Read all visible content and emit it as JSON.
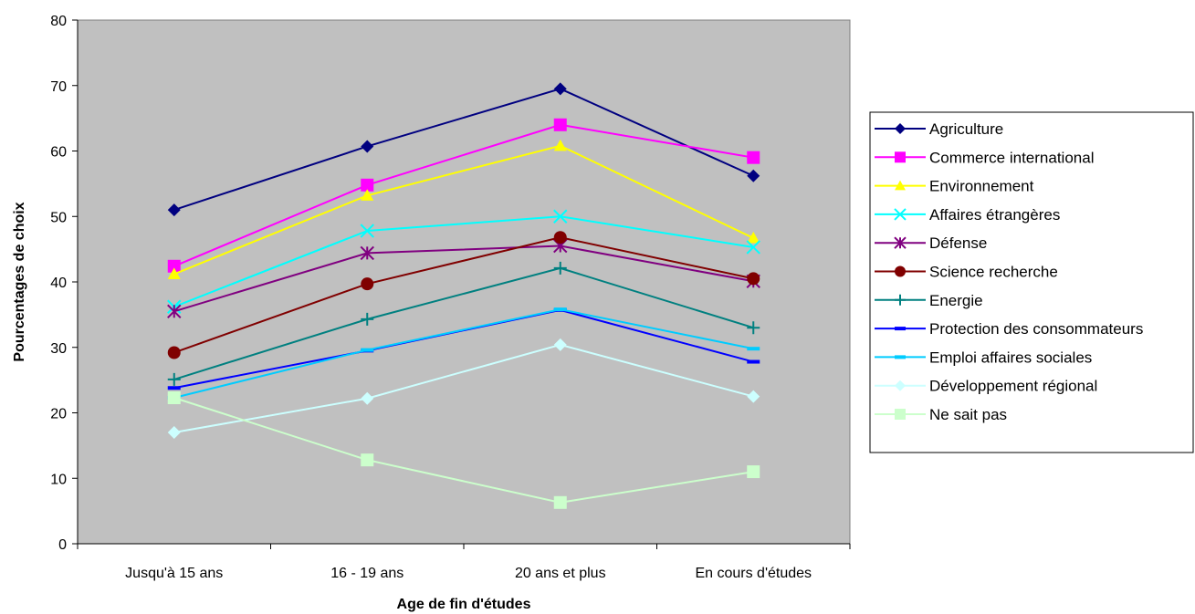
{
  "chart_data": {
    "type": "line",
    "title": "",
    "xlabel": "Age de fin d'études",
    "ylabel": "Pourcentages de choix",
    "ylim": [
      0,
      80
    ],
    "yticks": [
      0,
      10,
      20,
      30,
      40,
      50,
      60,
      70,
      80
    ],
    "grid": false,
    "plot_background": "#c0c0c0",
    "legend_position": "right",
    "categories": [
      "Jusqu'à 15 ans",
      "16 - 19 ans",
      "20 ans et plus",
      "En cours d'études"
    ],
    "series": [
      {
        "name": "Agriculture",
        "color": "#000080",
        "marker": "diamond",
        "values": [
          51,
          60.7,
          69.5,
          56.2
        ]
      },
      {
        "name": "Commerce international",
        "color": "#ff00ff",
        "marker": "square",
        "values": [
          42.4,
          54.8,
          64,
          59
        ]
      },
      {
        "name": "Environnement",
        "color": "#ffff00",
        "marker": "triangle",
        "values": [
          41.2,
          53.2,
          60.8,
          46.7
        ]
      },
      {
        "name": "Affaires étrangères",
        "color": "#00ffff",
        "marker": "x",
        "values": [
          36.2,
          47.8,
          50,
          45.3
        ]
      },
      {
        "name": "Défense",
        "color": "#800080",
        "marker": "star",
        "values": [
          35.5,
          44.4,
          45.5,
          40.1
        ]
      },
      {
        "name": "Science recherche",
        "color": "#800000",
        "marker": "circle",
        "values": [
          29.2,
          39.7,
          46.8,
          40.5
        ]
      },
      {
        "name": "Energie",
        "color": "#008080",
        "marker": "plus",
        "values": [
          25.1,
          34.3,
          42.1,
          33
        ]
      },
      {
        "name": "Protection des consommateurs",
        "color": "#0000ff",
        "marker": "dash",
        "values": [
          23.8,
          29.5,
          35.7,
          27.8
        ]
      },
      {
        "name": "Emploi affaires sociales",
        "color": "#00ccff",
        "marker": "dash",
        "values": [
          22.3,
          29.6,
          35.8,
          29.8
        ]
      },
      {
        "name": "Développement régional",
        "color": "#ccffff",
        "marker": "diamond",
        "values": [
          17,
          22.2,
          30.4,
          22.5
        ]
      },
      {
        "name": "Ne sait pas",
        "color": "#ccffcc",
        "marker": "square",
        "values": [
          22.3,
          12.8,
          6.3,
          11
        ]
      }
    ]
  }
}
